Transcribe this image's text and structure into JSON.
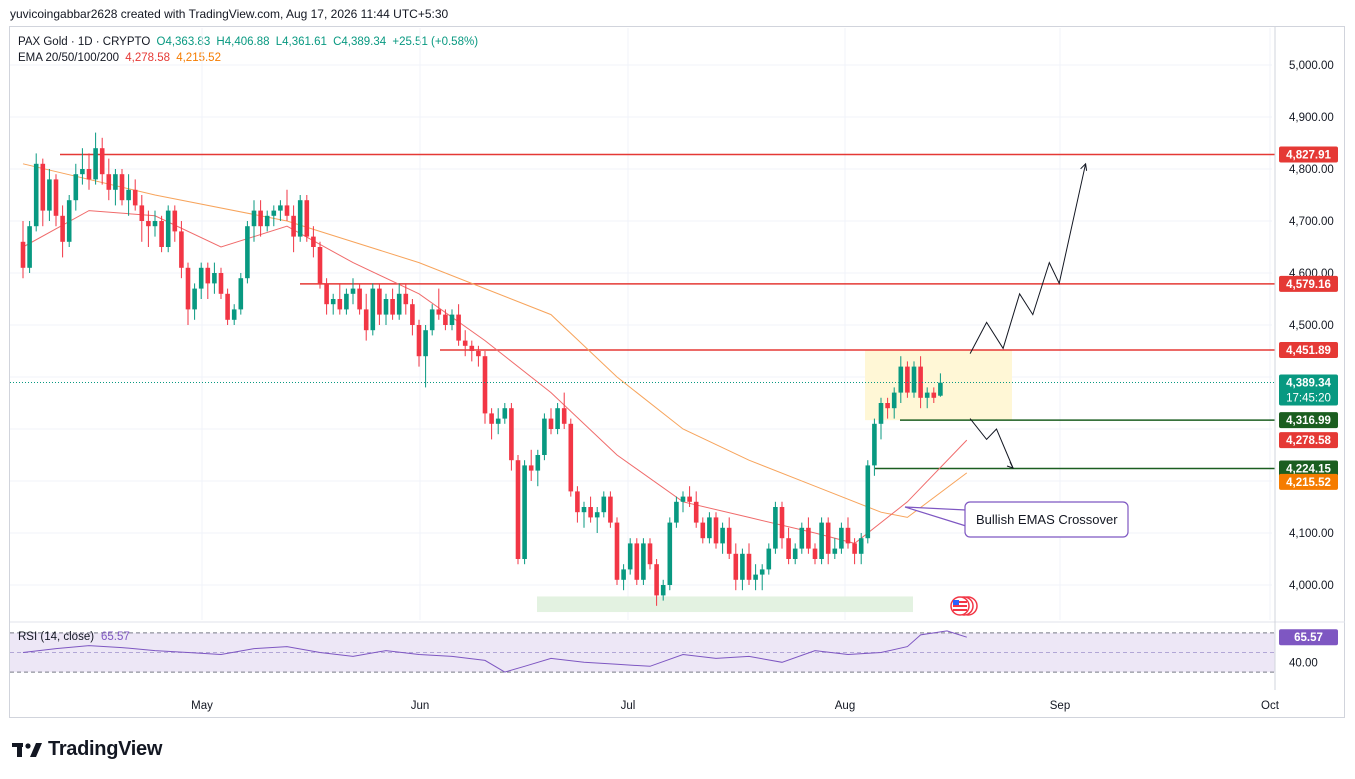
{
  "header": {
    "publisher": "yuvicoingabbar2628 created with TradingView.com, Aug 17, 2026 11:44 UTC+5:30"
  },
  "legend": {
    "symbol": "PAX Gold · 1D · CRYPTO",
    "open": "O4,363.83",
    "high": "H4,406.88",
    "low": "L4,361.61",
    "close": "C4,389.34",
    "change": "+25.51 (+0.58%)",
    "ema_label": "EMA 20/50/100/200",
    "ema20_value": "4,278.58",
    "ema50_value": "4,215.52"
  },
  "colors": {
    "bull": "#089981",
    "bear": "#f23645",
    "ema20": "#f06b6b",
    "ema50": "#f7a45c",
    "resistance": "#e53935",
    "support": "#1b5e20",
    "rsi_line": "#7e57c2",
    "rsi_band": "#ede7f6",
    "zone_yellow": "#fff7d6",
    "zone_green": "#e3f2e1",
    "callout_border": "#7e57c2",
    "badge_price": "#089981",
    "badge_ema50": "#f57c00"
  },
  "price_axis": {
    "ticks": [
      "5,000.00",
      "4,900.00",
      "4,800.00",
      "4,700.00",
      "4,600.00",
      "4,500.00",
      "4,100.00",
      "4,000.00"
    ]
  },
  "time_axis": {
    "ticks": [
      "May",
      "Jun",
      "Jul",
      "Aug",
      "Sep",
      "Oct"
    ]
  },
  "badges": {
    "r1": "4,827.91",
    "r2": "4,579.16",
    "r3": "4,451.89",
    "price": "4,389.34",
    "countdown": "17:45:20",
    "s1": "4,316.99",
    "ema20": "4,278.58",
    "s2": "4,224.15",
    "ema50": "4,215.52"
  },
  "annotation": {
    "callout_text": "Bullish EMAS Crossover"
  },
  "rsi": {
    "label": "RSI (14, close)",
    "value": "65.57",
    "axis_tick": "40.00",
    "levels": [
      70,
      50,
      30
    ],
    "shown_range": [
      22,
      76
    ]
  },
  "brand": {
    "name": "TradingView"
  },
  "chart_data": {
    "type": "candlestick",
    "title": "PAX Gold · 1D · CRYPTO",
    "ylim": [
      3945,
      5080
    ],
    "x_ticks": [
      "May",
      "Jun",
      "Jul",
      "Aug",
      "Sep",
      "Oct"
    ],
    "resistance_levels": [
      4827.91,
      4579.16,
      4451.89
    ],
    "support_levels": [
      4316.99,
      4224.15
    ],
    "current_price": 4389.34,
    "ema20_last": 4278.58,
    "ema50_last": 4215.52,
    "candles": [
      [
        4660,
        4700,
        4590,
        4610
      ],
      [
        4610,
        4700,
        4600,
        4690
      ],
      [
        4690,
        4830,
        4680,
        4810
      ],
      [
        4810,
        4820,
        4690,
        4720
      ],
      [
        4720,
        4800,
        4700,
        4780
      ],
      [
        4780,
        4790,
        4690,
        4710
      ],
      [
        4710,
        4730,
        4630,
        4660
      ],
      [
        4660,
        4750,
        4650,
        4740
      ],
      [
        4740,
        4810,
        4720,
        4790
      ],
      [
        4790,
        4840,
        4770,
        4800
      ],
      [
        4800,
        4830,
        4760,
        4780
      ],
      [
        4780,
        4870,
        4770,
        4840
      ],
      [
        4840,
        4860,
        4770,
        4790
      ],
      [
        4790,
        4820,
        4740,
        4760
      ],
      [
        4760,
        4800,
        4730,
        4790
      ],
      [
        4790,
        4800,
        4730,
        4740
      ],
      [
        4740,
        4790,
        4710,
        4760
      ],
      [
        4760,
        4780,
        4720,
        4730
      ],
      [
        4730,
        4750,
        4660,
        4700
      ],
      [
        4700,
        4720,
        4650,
        4690
      ],
      [
        4690,
        4720,
        4670,
        4700
      ],
      [
        4700,
        4710,
        4640,
        4650
      ],
      [
        4650,
        4730,
        4640,
        4720
      ],
      [
        4720,
        4730,
        4660,
        4680
      ],
      [
        4680,
        4700,
        4590,
        4610
      ],
      [
        4610,
        4620,
        4500,
        4530
      ],
      [
        4530,
        4580,
        4510,
        4570
      ],
      [
        4570,
        4620,
        4550,
        4610
      ],
      [
        4610,
        4620,
        4550,
        4580
      ],
      [
        4580,
        4620,
        4560,
        4600
      ],
      [
        4600,
        4610,
        4550,
        4560
      ],
      [
        4560,
        4570,
        4500,
        4510
      ],
      [
        4510,
        4540,
        4500,
        4530
      ],
      [
        4530,
        4600,
        4520,
        4590
      ],
      [
        4590,
        4700,
        4580,
        4690
      ],
      [
        4690,
        4740,
        4660,
        4720
      ],
      [
        4720,
        4740,
        4670,
        4690
      ],
      [
        4690,
        4720,
        4680,
        4710
      ],
      [
        4710,
        4730,
        4690,
        4720
      ],
      [
        4720,
        4740,
        4700,
        4730
      ],
      [
        4730,
        4760,
        4700,
        4710
      ],
      [
        4710,
        4730,
        4640,
        4670
      ],
      [
        4670,
        4750,
        4660,
        4740
      ],
      [
        4740,
        4750,
        4660,
        4670
      ],
      [
        4670,
        4690,
        4630,
        4650
      ],
      [
        4650,
        4660,
        4570,
        4580
      ],
      [
        4580,
        4590,
        4520,
        4540
      ],
      [
        4540,
        4560,
        4520,
        4550
      ],
      [
        4550,
        4580,
        4520,
        4530
      ],
      [
        4530,
        4570,
        4520,
        4560
      ],
      [
        4560,
        4590,
        4540,
        4570
      ],
      [
        4570,
        4580,
        4520,
        4530
      ],
      [
        4530,
        4560,
        4470,
        4490
      ],
      [
        4490,
        4580,
        4480,
        4570
      ],
      [
        4570,
        4580,
        4500,
        4520
      ],
      [
        4520,
        4560,
        4500,
        4550
      ],
      [
        4550,
        4570,
        4510,
        4520
      ],
      [
        4520,
        4580,
        4510,
        4560
      ],
      [
        4560,
        4580,
        4520,
        4540
      ],
      [
        4540,
        4550,
        4480,
        4500
      ],
      [
        4500,
        4510,
        4420,
        4440
      ],
      [
        4440,
        4500,
        4380,
        4490
      ],
      [
        4490,
        4540,
        4480,
        4530
      ],
      [
        4530,
        4570,
        4510,
        4520
      ],
      [
        4520,
        4530,
        4490,
        4500
      ],
      [
        4500,
        4530,
        4490,
        4520
      ],
      [
        4520,
        4540,
        4460,
        4470
      ],
      [
        4470,
        4490,
        4440,
        4460
      ],
      [
        4460,
        4470,
        4430,
        4450
      ],
      [
        4450,
        4460,
        4420,
        4440
      ],
      [
        4440,
        4450,
        4310,
        4330
      ],
      [
        4330,
        4340,
        4280,
        4310
      ],
      [
        4310,
        4340,
        4290,
        4320
      ],
      [
        4320,
        4350,
        4310,
        4340
      ],
      [
        4340,
        4350,
        4220,
        4240
      ],
      [
        4240,
        4250,
        4040,
        4050
      ],
      [
        4050,
        4240,
        4040,
        4230
      ],
      [
        4230,
        4260,
        4200,
        4220
      ],
      [
        4220,
        4260,
        4190,
        4250
      ],
      [
        4250,
        4330,
        4240,
        4320
      ],
      [
        4320,
        4340,
        4290,
        4300
      ],
      [
        4300,
        4350,
        4290,
        4340
      ],
      [
        4340,
        4370,
        4300,
        4310
      ],
      [
        4310,
        4320,
        4170,
        4180
      ],
      [
        4180,
        4190,
        4120,
        4140
      ],
      [
        4140,
        4160,
        4110,
        4150
      ],
      [
        4150,
        4170,
        4120,
        4130
      ],
      [
        4130,
        4150,
        4100,
        4140
      ],
      [
        4140,
        4180,
        4130,
        4170
      ],
      [
        4170,
        4180,
        4110,
        4120
      ],
      [
        4120,
        4130,
        4000,
        4010
      ],
      [
        4010,
        4040,
        3990,
        4030
      ],
      [
        4030,
        4090,
        4020,
        4080
      ],
      [
        4080,
        4090,
        4000,
        4010
      ],
      [
        4010,
        4090,
        4000,
        4080
      ],
      [
        4080,
        4090,
        4030,
        4040
      ],
      [
        4040,
        4050,
        3960,
        3980
      ],
      [
        3980,
        4010,
        3970,
        4000
      ],
      [
        4000,
        4130,
        3990,
        4120
      ],
      [
        4120,
        4170,
        4110,
        4160
      ],
      [
        4160,
        4180,
        4140,
        4170
      ],
      [
        4170,
        4190,
        4150,
        4160
      ],
      [
        4160,
        4180,
        4110,
        4120
      ],
      [
        4120,
        4130,
        4080,
        4090
      ],
      [
        4090,
        4140,
        4080,
        4130
      ],
      [
        4130,
        4140,
        4070,
        4080
      ],
      [
        4080,
        4120,
        4060,
        4110
      ],
      [
        4110,
        4130,
        4050,
        4060
      ],
      [
        4060,
        4080,
        3990,
        4010
      ],
      [
        4010,
        4070,
        3990,
        4060
      ],
      [
        4060,
        4080,
        4000,
        4010
      ],
      [
        4010,
        4040,
        3990,
        4020
      ],
      [
        4020,
        4040,
        3990,
        4030
      ],
      [
        4030,
        4080,
        4020,
        4070
      ],
      [
        4070,
        4160,
        4060,
        4150
      ],
      [
        4150,
        4160,
        4070,
        4090
      ],
      [
        4090,
        4110,
        4040,
        4050
      ],
      [
        4050,
        4080,
        4040,
        4070
      ],
      [
        4070,
        4120,
        4060,
        4110
      ],
      [
        4110,
        4130,
        4060,
        4070
      ],
      [
        4070,
        4080,
        4040,
        4050
      ],
      [
        4050,
        4130,
        4040,
        4120
      ],
      [
        4120,
        4130,
        4040,
        4060
      ],
      [
        4060,
        4090,
        4050,
        4070
      ],
      [
        4070,
        4120,
        4060,
        4110
      ],
      [
        4110,
        4130,
        4070,
        4080
      ],
      [
        4080,
        4090,
        4040,
        4060
      ],
      [
        4060,
        4100,
        4040,
        4090
      ],
      [
        4090,
        4240,
        4080,
        4230
      ],
      [
        4230,
        4320,
        4210,
        4310
      ],
      [
        4310,
        4360,
        4280,
        4350
      ],
      [
        4350,
        4360,
        4320,
        4340
      ],
      [
        4340,
        4380,
        4320,
        4370
      ],
      [
        4370,
        4440,
        4350,
        4420
      ],
      [
        4420,
        4430,
        4360,
        4370
      ],
      [
        4370,
        4430,
        4360,
        4420
      ],
      [
        4420,
        4440,
        4340,
        4360
      ],
      [
        4360,
        4380,
        4340,
        4370
      ],
      [
        4370,
        4380,
        4350,
        4360
      ],
      [
        4364,
        4407,
        4362,
        4389
      ]
    ],
    "ema20": [
      [
        0,
        4650
      ],
      [
        10,
        4720
      ],
      [
        20,
        4710
      ],
      [
        30,
        4650
      ],
      [
        40,
        4690
      ],
      [
        50,
        4620
      ],
      [
        60,
        4560
      ],
      [
        70,
        4470
      ],
      [
        80,
        4370
      ],
      [
        90,
        4250
      ],
      [
        100,
        4160
      ],
      [
        110,
        4130
      ],
      [
        120,
        4100
      ],
      [
        126,
        4080
      ],
      [
        134,
        4160
      ],
      [
        143,
        4278.58
      ]
    ],
    "ema50": [
      [
        0,
        4810
      ],
      [
        20,
        4750
      ],
      [
        40,
        4700
      ],
      [
        60,
        4620
      ],
      [
        80,
        4520
      ],
      [
        90,
        4400
      ],
      [
        100,
        4300
      ],
      [
        110,
        4240
      ],
      [
        120,
        4190
      ],
      [
        130,
        4140
      ],
      [
        134,
        4130
      ],
      [
        143,
        4215.52
      ]
    ],
    "rsi_series": [
      [
        0,
        50
      ],
      [
        5,
        54
      ],
      [
        10,
        57
      ],
      [
        15,
        55
      ],
      [
        20,
        52
      ],
      [
        25,
        50
      ],
      [
        30,
        48
      ],
      [
        35,
        54
      ],
      [
        40,
        56
      ],
      [
        45,
        50
      ],
      [
        50,
        46
      ],
      [
        55,
        52
      ],
      [
        60,
        48
      ],
      [
        65,
        46
      ],
      [
        70,
        42
      ],
      [
        73,
        30
      ],
      [
        76,
        36
      ],
      [
        80,
        44
      ],
      [
        85,
        40
      ],
      [
        90,
        38
      ],
      [
        95,
        36
      ],
      [
        100,
        48
      ],
      [
        105,
        44
      ],
      [
        110,
        46
      ],
      [
        115,
        40
      ],
      [
        120,
        52
      ],
      [
        125,
        48
      ],
      [
        130,
        50
      ],
      [
        134,
        56
      ],
      [
        136,
        68
      ],
      [
        140,
        72
      ],
      [
        143,
        65.57
      ]
    ],
    "forecast_up": [
      [
        4445,
        143.5
      ],
      [
        4505,
        146
      ],
      [
        4455,
        148.5
      ],
      [
        4560,
        151
      ],
      [
        4520,
        153
      ],
      [
        4620,
        155.5
      ],
      [
        4580,
        157
      ],
      [
        4810,
        161
      ]
    ],
    "forecast_down": [
      [
        4320,
        143.5
      ],
      [
        4280,
        146
      ],
      [
        4300,
        147.5
      ],
      [
        4225,
        150
      ]
    ]
  }
}
